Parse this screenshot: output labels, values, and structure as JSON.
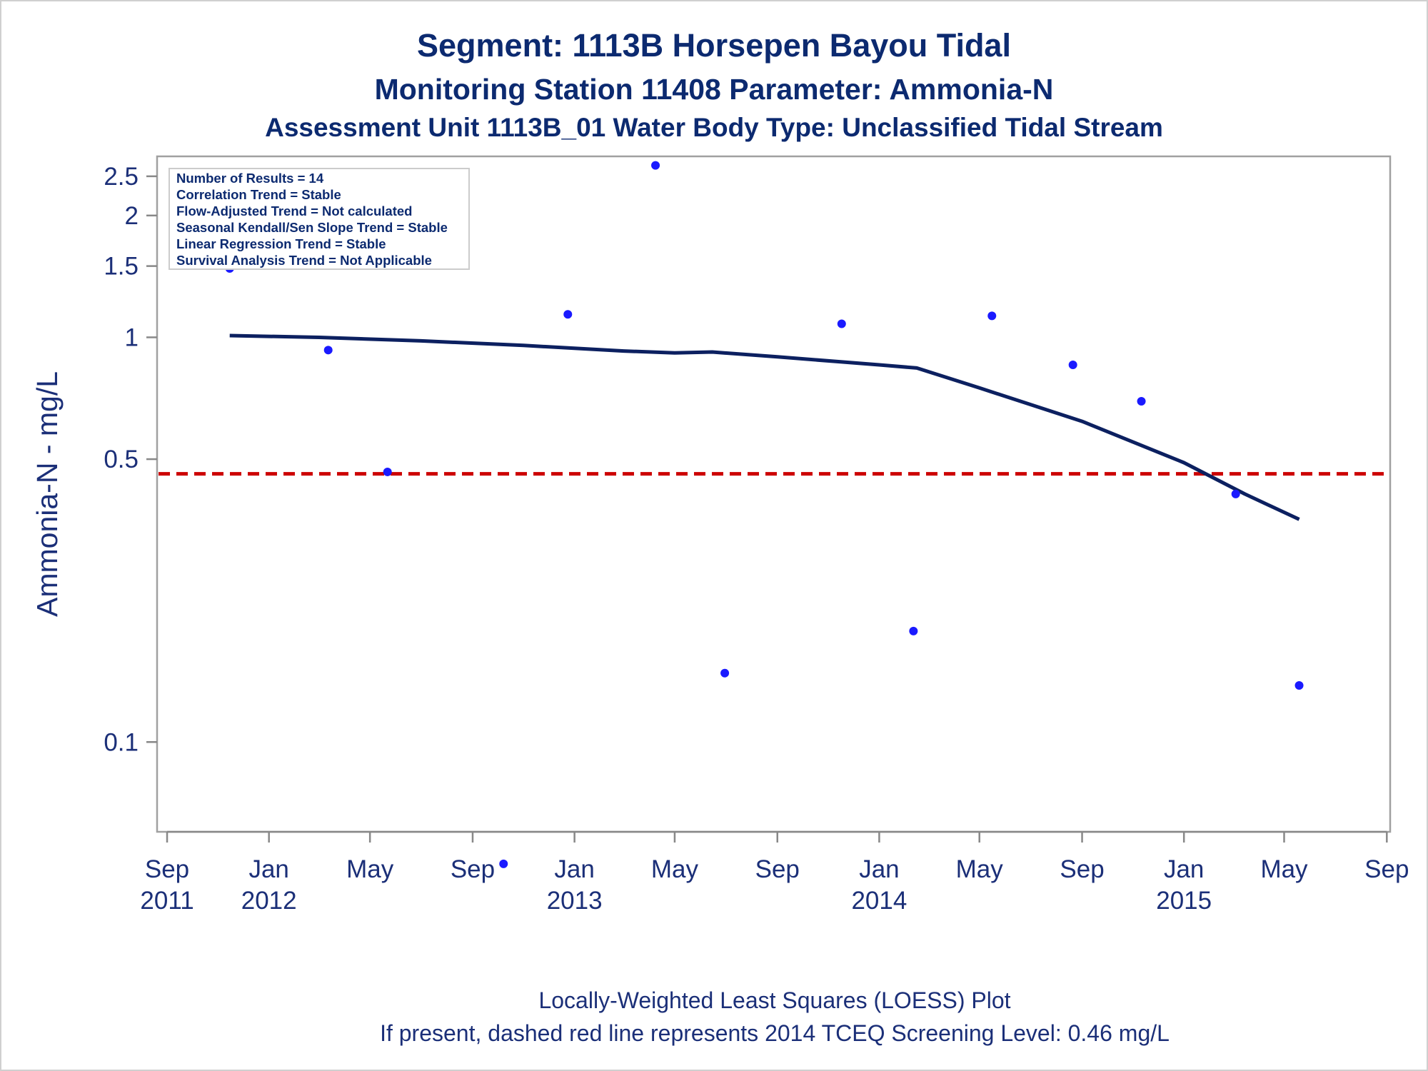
{
  "chart_data": {
    "type": "scatter",
    "title": "Segment: 1113B  Horsepen Bayou Tidal",
    "subtitle": "Monitoring Station 11408 Parameter: Ammonia-N",
    "subtitle2": "Assessment Unit 1113B_01   Water Body Type: Unclassified Tidal Stream",
    "ylabel": "Ammonia-N - mg/L",
    "yscale": "log",
    "ylim": [
      0.06,
      2.8
    ],
    "xlim": [
      "2011-08-20",
      "2015-09-05"
    ],
    "yticks": [
      {
        "value": 0.1,
        "label": "0.1"
      },
      {
        "value": 0.5,
        "label": "0.5"
      },
      {
        "value": 1,
        "label": "1"
      },
      {
        "value": 1.5,
        "label": "1.5"
      },
      {
        "value": 2,
        "label": "2"
      },
      {
        "value": 2.5,
        "label": "2.5"
      }
    ],
    "xticks": [
      {
        "date": "2011-09-01",
        "month": "Sep",
        "year": "2011"
      },
      {
        "date": "2012-01-01",
        "month": "Jan",
        "year": "2012"
      },
      {
        "date": "2012-05-01",
        "month": "May",
        "year": ""
      },
      {
        "date": "2012-09-01",
        "month": "Sep",
        "year": ""
      },
      {
        "date": "2013-01-01",
        "month": "Jan",
        "year": "2013"
      },
      {
        "date": "2013-05-01",
        "month": "May",
        "year": ""
      },
      {
        "date": "2013-09-01",
        "month": "Sep",
        "year": ""
      },
      {
        "date": "2014-01-01",
        "month": "Jan",
        "year": "2014"
      },
      {
        "date": "2014-05-01",
        "month": "May",
        "year": ""
      },
      {
        "date": "2014-09-01",
        "month": "Sep",
        "year": ""
      },
      {
        "date": "2015-01-01",
        "month": "Jan",
        "year": "2015"
      },
      {
        "date": "2015-05-01",
        "month": "May",
        "year": ""
      },
      {
        "date": "2015-09-01",
        "month": "Sep",
        "year": ""
      }
    ],
    "points": [
      {
        "date": "2011-11-15",
        "value": 1.48
      },
      {
        "date": "2012-03-12",
        "value": 0.93
      },
      {
        "date": "2012-05-22",
        "value": 0.465
      },
      {
        "date": "2012-10-08",
        "value": 0.05
      },
      {
        "date": "2012-12-24",
        "value": 1.14
      },
      {
        "date": "2013-04-08",
        "value": 2.66
      },
      {
        "date": "2013-06-30",
        "value": 0.148
      },
      {
        "date": "2013-11-17",
        "value": 1.08
      },
      {
        "date": "2014-02-11",
        "value": 0.188
      },
      {
        "date": "2014-05-16",
        "value": 1.13
      },
      {
        "date": "2014-08-21",
        "value": 0.855
      },
      {
        "date": "2014-11-11",
        "value": 0.695
      },
      {
        "date": "2015-03-04",
        "value": 0.41
      },
      {
        "date": "2015-05-19",
        "value": 0.138
      }
    ],
    "loess": [
      {
        "date": "2011-11-15",
        "value": 1.01
      },
      {
        "date": "2012-03-01",
        "value": 1.0
      },
      {
        "date": "2012-07-01",
        "value": 0.98
      },
      {
        "date": "2012-11-01",
        "value": 0.955
      },
      {
        "date": "2013-03-01",
        "value": 0.925
      },
      {
        "date": "2013-05-01",
        "value": 0.915
      },
      {
        "date": "2013-06-15",
        "value": 0.92
      },
      {
        "date": "2013-09-01",
        "value": 0.895
      },
      {
        "date": "2014-01-01",
        "value": 0.855
      },
      {
        "date": "2014-02-15",
        "value": 0.84
      },
      {
        "date": "2014-05-01",
        "value": 0.75
      },
      {
        "date": "2014-09-01",
        "value": 0.62
      },
      {
        "date": "2015-01-01",
        "value": 0.49
      },
      {
        "date": "2015-03-15",
        "value": 0.41
      },
      {
        "date": "2015-05-19",
        "value": 0.355
      }
    ],
    "screening_level": 0.46,
    "stats": [
      "Number of Results = 14",
      "Correlation Trend = Stable",
      "Flow-Adjusted Trend = Not calculated",
      "Seasonal Kendall/Sen Slope Trend = Stable",
      "Linear Regression Trend = Stable",
      "Survival Analysis Trend = Not Applicable"
    ],
    "footnotes": [
      "Locally-Weighted Least Squares (LOESS) Plot",
      "If present, dashed red line represents 2014 TCEQ Screening Level: 0.46 mg/L"
    ],
    "colors": {
      "points": "#1a1aff",
      "loess": "#0c2060",
      "screening": "#cc0000",
      "text": "#0c2a70",
      "axis": "#888888"
    }
  }
}
